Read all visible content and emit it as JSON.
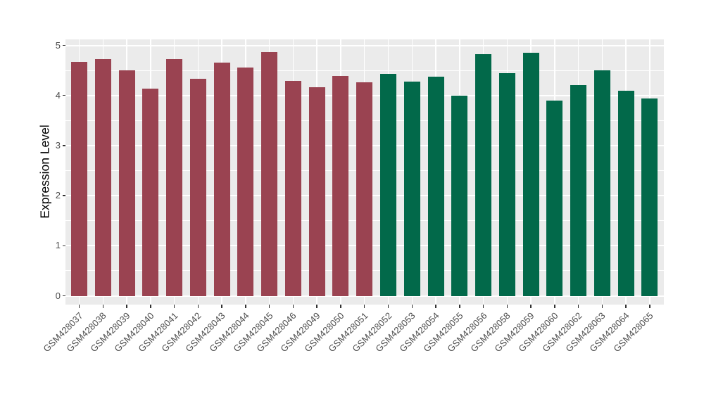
{
  "figure": {
    "background_color": "#FFFFFF",
    "panel_background_color": "#EBEBEB",
    "grid_color": "#FFFFFF",
    "tick_color": "#333333",
    "tick_label_color": "#4D4D4D",
    "axis_title_color": "#000000"
  },
  "chart_data": {
    "type": "bar",
    "title": "",
    "xlabel": "",
    "ylabel": "Expression Level",
    "ylim": [
      0,
      5
    ],
    "yticks": [
      0,
      1,
      2,
      3,
      4,
      5
    ],
    "grid": "major and minor horizontal white gridlines, major vertical gridlines at bar centers",
    "legend": "none",
    "x_tick_rotation_deg": 45,
    "group_colors": {
      "group1": "#9A4351",
      "group2": "#02694A"
    },
    "categories": [
      "GSM428037",
      "GSM428038",
      "GSM428039",
      "GSM428040",
      "GSM428041",
      "GSM428042",
      "GSM428043",
      "GSM428044",
      "GSM428045",
      "GSM428046",
      "GSM428049",
      "GSM428050",
      "GSM428051",
      "GSM428052",
      "GSM428053",
      "GSM428054",
      "GSM428055",
      "GSM428056",
      "GSM428058",
      "GSM428059",
      "GSM428060",
      "GSM428062",
      "GSM428063",
      "GSM428064",
      "GSM428065"
    ],
    "values": [
      4.67,
      4.72,
      4.5,
      4.13,
      4.72,
      4.34,
      4.66,
      4.56,
      4.86,
      4.29,
      4.17,
      4.39,
      4.26,
      4.43,
      4.28,
      4.37,
      4.0,
      4.82,
      4.45,
      4.85,
      3.9,
      4.21,
      4.5,
      4.09,
      3.94
    ],
    "groups": [
      "group1",
      "group1",
      "group1",
      "group1",
      "group1",
      "group1",
      "group1",
      "group1",
      "group1",
      "group1",
      "group1",
      "group1",
      "group1",
      "group2",
      "group2",
      "group2",
      "group2",
      "group2",
      "group2",
      "group2",
      "group2",
      "group2",
      "group2",
      "group2",
      "group2"
    ]
  }
}
